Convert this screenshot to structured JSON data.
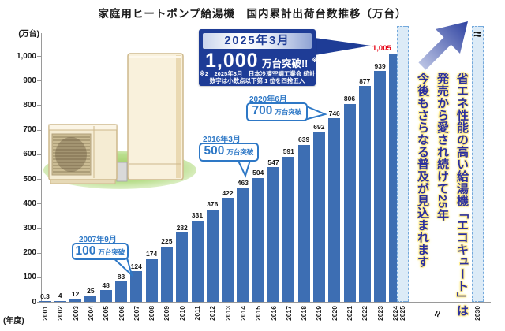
{
  "chart_data": {
    "type": "bar",
    "title": "家庭用ヒートポンプ給湯機　国内累計出荷台数推移（万台）",
    "unit_label": "(万台)",
    "axis_unit_label": "(年度)",
    "ylim": [
      0,
      1000
    ],
    "grid": false,
    "legend": false,
    "yticks": [
      "1,000",
      "900",
      "800",
      "700",
      "600",
      "500",
      "400",
      "300",
      "200",
      "100",
      "0"
    ],
    "categories": [
      "2001",
      "2002",
      "2003",
      "2004",
      "2005",
      "2006",
      "2007",
      "2008",
      "2009",
      "2010",
      "2011",
      "2012",
      "2013",
      "2014",
      "2015",
      "2016",
      "2017",
      "2018",
      "2019",
      "2020",
      "2021",
      "2022",
      "2023",
      "2024"
    ],
    "values": [
      0.3,
      4,
      12,
      25,
      48,
      83,
      124,
      174,
      225,
      282,
      331,
      376,
      422,
      463,
      504,
      547,
      591,
      639,
      692,
      746,
      806,
      877,
      939,
      1005
    ],
    "value_labels": [
      "0.3",
      "4",
      "12",
      "25",
      "48",
      "83",
      "124",
      "174",
      "225",
      "282",
      "331",
      "376",
      "422",
      "463",
      "504",
      "547",
      "591",
      "639",
      "692",
      "746",
      "806",
      "877",
      "939",
      "1,005"
    ],
    "projected": [
      {
        "label": "2025",
        "break_symbol": ""
      },
      {
        "label": "2030",
        "break_symbol": "≈"
      }
    ],
    "axis_break_symbol": "≈",
    "bar_color": "#3d6eb3",
    "projected_fill": "#dcebf7",
    "projected_border": "#74a9dc",
    "highlight_value_color": "#e60012"
  },
  "callout_main": {
    "header": "2025年3月",
    "big_number": "1,000",
    "suffix": "万台突破!!",
    "ref_mark": "※2",
    "note_line1": "※2　2025年3月　日本冷凍空調工業会 統計",
    "note_line2": "数字は小数点以下第 1 位を四捨五入"
  },
  "milestones": [
    {
      "date": "2007年9月",
      "num": "100",
      "suffix": "万台突破"
    },
    {
      "date": "2016年3月",
      "num": "500",
      "suffix": "万台突破"
    },
    {
      "date": "2020年6月",
      "num": "700",
      "suffix": "万台突破"
    }
  ],
  "side_text": {
    "lines": [
      "省エネ性能の高い給湯機「エコキュート」は",
      "発売から愛され続けて25年",
      "今後もさらなる普及が見込まれます"
    ]
  }
}
